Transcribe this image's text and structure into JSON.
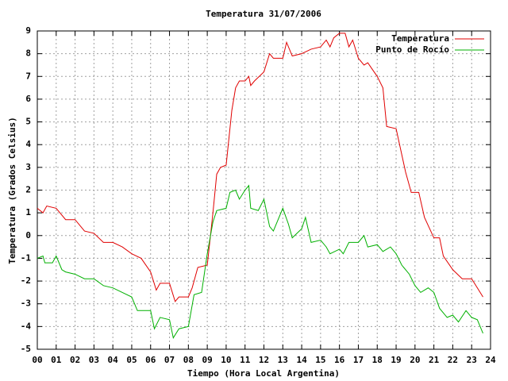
{
  "chart_data": {
    "type": "line",
    "title": "Temperatura 31/07/2006",
    "xlabel": "Tiempo (Hora Local Argentina)",
    "ylabel": "Temperatura (Grados Celsius)",
    "xlim": [
      0,
      24
    ],
    "ylim": [
      -5,
      9
    ],
    "xticks": [
      {
        "value": 0,
        "label": "00"
      },
      {
        "value": 1,
        "label": "01"
      },
      {
        "value": 2,
        "label": "02"
      },
      {
        "value": 3,
        "label": "03"
      },
      {
        "value": 4,
        "label": "04"
      },
      {
        "value": 5,
        "label": "05"
      },
      {
        "value": 6,
        "label": "06"
      },
      {
        "value": 7,
        "label": "07"
      },
      {
        "value": 8,
        "label": "08"
      },
      {
        "value": 9,
        "label": "09"
      },
      {
        "value": 10,
        "label": "10"
      },
      {
        "value": 11,
        "label": "11"
      },
      {
        "value": 12,
        "label": "12"
      },
      {
        "value": 13,
        "label": "13"
      },
      {
        "value": 14,
        "label": "14"
      },
      {
        "value": 15,
        "label": "15"
      },
      {
        "value": 16,
        "label": "16"
      },
      {
        "value": 17,
        "label": "17"
      },
      {
        "value": 18,
        "label": "18"
      },
      {
        "value": 19,
        "label": "19"
      },
      {
        "value": 20,
        "label": "20"
      },
      {
        "value": 21,
        "label": "21"
      },
      {
        "value": 22,
        "label": "22"
      },
      {
        "value": 23,
        "label": "23"
      },
      {
        "value": 24,
        "label": "24"
      }
    ],
    "yticks": [
      -5,
      -4,
      -3,
      -2,
      -1,
      0,
      1,
      2,
      3,
      4,
      5,
      6,
      7,
      8,
      9
    ],
    "grid": true,
    "legend": "top-right",
    "series": [
      {
        "name": "Temperatura",
        "color": "#e00000",
        "x": [
          0,
          0.3,
          0.5,
          1.0,
          1.5,
          2.0,
          2.5,
          3.0,
          3.5,
          4.0,
          4.5,
          5.0,
          5.5,
          6.0,
          6.3,
          6.5,
          7.0,
          7.3,
          7.5,
          8.0,
          8.2,
          8.5,
          9.0,
          9.3,
          9.5,
          9.7,
          10.0,
          10.3,
          10.5,
          10.7,
          11.0,
          11.2,
          11.3,
          11.5,
          12.0,
          12.3,
          12.5,
          13.0,
          13.2,
          13.5,
          14.0,
          14.5,
          15.0,
          15.3,
          15.5,
          15.7,
          16.0,
          16.3,
          16.5,
          16.7,
          17.0,
          17.3,
          17.5,
          18.0,
          18.3,
          18.5,
          19.0,
          19.5,
          19.8,
          20.2,
          20.5,
          21.0,
          21.3,
          21.5,
          22.0,
          22.5,
          23.0,
          23.3,
          23.6
        ],
        "values": [
          1.2,
          1.0,
          1.3,
          1.2,
          0.7,
          0.7,
          0.2,
          0.1,
          -0.3,
          -0.3,
          -0.5,
          -0.8,
          -1.0,
          -1.6,
          -2.4,
          -2.1,
          -2.1,
          -2.9,
          -2.7,
          -2.7,
          -2.3,
          -1.4,
          -1.3,
          1.0,
          2.7,
          3.0,
          3.1,
          5.5,
          6.5,
          6.8,
          6.8,
          7.0,
          6.6,
          6.8,
          7.2,
          8.0,
          7.8,
          7.8,
          8.5,
          7.9,
          8.0,
          8.2,
          8.3,
          8.6,
          8.3,
          8.7,
          8.9,
          8.9,
          8.3,
          8.6,
          7.8,
          7.5,
          7.6,
          7.0,
          6.5,
          4.8,
          4.7,
          2.8,
          1.9,
          1.9,
          0.8,
          -0.1,
          -0.1,
          -0.9,
          -1.5,
          -1.9,
          -1.9,
          -2.3,
          -2.7
        ]
      },
      {
        "name": "Punto de Rocío",
        "color": "#00b000",
        "x": [
          0,
          0.3,
          0.4,
          0.8,
          1.0,
          1.3,
          1.5,
          2.0,
          2.5,
          3.0,
          3.5,
          4.0,
          4.5,
          5.0,
          5.3,
          6.0,
          6.2,
          6.5,
          7.0,
          7.2,
          7.5,
          8.0,
          8.3,
          8.7,
          9.0,
          9.3,
          9.5,
          10.0,
          10.2,
          10.5,
          10.7,
          11.0,
          11.2,
          11.3,
          11.7,
          12.0,
          12.3,
          12.5,
          13.0,
          13.3,
          13.5,
          14.0,
          14.2,
          14.5,
          15.0,
          15.3,
          15.5,
          16.0,
          16.2,
          16.5,
          17.0,
          17.3,
          17.5,
          18.0,
          18.3,
          18.7,
          19.0,
          19.3,
          19.7,
          20.0,
          20.3,
          20.7,
          21.0,
          21.3,
          21.7,
          22.0,
          22.3,
          22.7,
          23.0,
          23.3,
          23.6
        ],
        "values": [
          -1.0,
          -0.9,
          -1.2,
          -1.2,
          -0.9,
          -1.5,
          -1.6,
          -1.7,
          -1.9,
          -1.9,
          -2.2,
          -2.3,
          -2.5,
          -2.7,
          -3.3,
          -3.3,
          -4.1,
          -3.6,
          -3.7,
          -4.5,
          -4.1,
          -4.0,
          -2.6,
          -2.5,
          -0.8,
          0.6,
          1.1,
          1.2,
          1.9,
          2.0,
          1.6,
          2.0,
          2.2,
          1.2,
          1.1,
          1.6,
          0.4,
          0.2,
          1.2,
          0.5,
          -0.1,
          0.3,
          0.8,
          -0.3,
          -0.2,
          -0.5,
          -0.8,
          -0.6,
          -0.8,
          -0.3,
          -0.3,
          0.0,
          -0.5,
          -0.4,
          -0.7,
          -0.5,
          -0.8,
          -1.3,
          -1.7,
          -2.2,
          -2.5,
          -2.3,
          -2.5,
          -3.2,
          -3.6,
          -3.5,
          -3.8,
          -3.3,
          -3.6,
          -3.7,
          -4.3
        ]
      }
    ]
  }
}
